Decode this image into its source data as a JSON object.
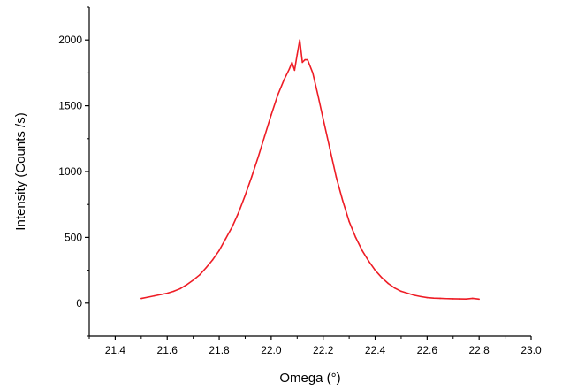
{
  "chart_data": {
    "type": "line",
    "xlabel": "Omega (°)",
    "ylabel": "Intensity (Counts /s)",
    "xlim": [
      21.3,
      23.0
    ],
    "ylim": [
      -250,
      2250
    ],
    "xticks": [
      "21.4",
      "21.6",
      "21.8",
      "22.0",
      "22.2",
      "22.4",
      "22.6",
      "22.8",
      "23.0"
    ],
    "yticks": [
      "0",
      "500",
      "1000",
      "1500",
      "2000"
    ],
    "grid": false,
    "series": [
      {
        "color": "#ee1c25",
        "x": [
          21.5,
          21.525,
          21.55,
          21.575,
          21.6,
          21.625,
          21.65,
          21.675,
          21.7,
          21.725,
          21.75,
          21.775,
          21.8,
          21.825,
          21.85,
          21.875,
          21.9,
          21.925,
          21.95,
          21.975,
          22.0,
          22.025,
          22.05,
          22.07,
          22.08,
          22.09,
          22.1,
          22.11,
          22.12,
          22.13,
          22.14,
          22.16,
          22.18,
          22.2,
          22.225,
          22.25,
          22.275,
          22.3,
          22.325,
          22.35,
          22.375,
          22.4,
          22.425,
          22.45,
          22.475,
          22.5,
          22.525,
          22.55,
          22.575,
          22.6,
          22.625,
          22.65,
          22.675,
          22.7,
          22.725,
          22.75,
          22.775,
          22.8
        ],
        "y": [
          35,
          45,
          55,
          65,
          75,
          90,
          110,
          140,
          175,
          215,
          270,
          330,
          400,
          490,
          580,
          690,
          820,
          960,
          1110,
          1270,
          1430,
          1580,
          1700,
          1780,
          1830,
          1770,
          1890,
          2000,
          1830,
          1850,
          1850,
          1750,
          1580,
          1400,
          1180,
          960,
          780,
          620,
          500,
          400,
          320,
          250,
          195,
          150,
          115,
          90,
          75,
          60,
          50,
          42,
          38,
          36,
          34,
          33,
          32,
          31,
          36,
          30
        ]
      }
    ]
  }
}
